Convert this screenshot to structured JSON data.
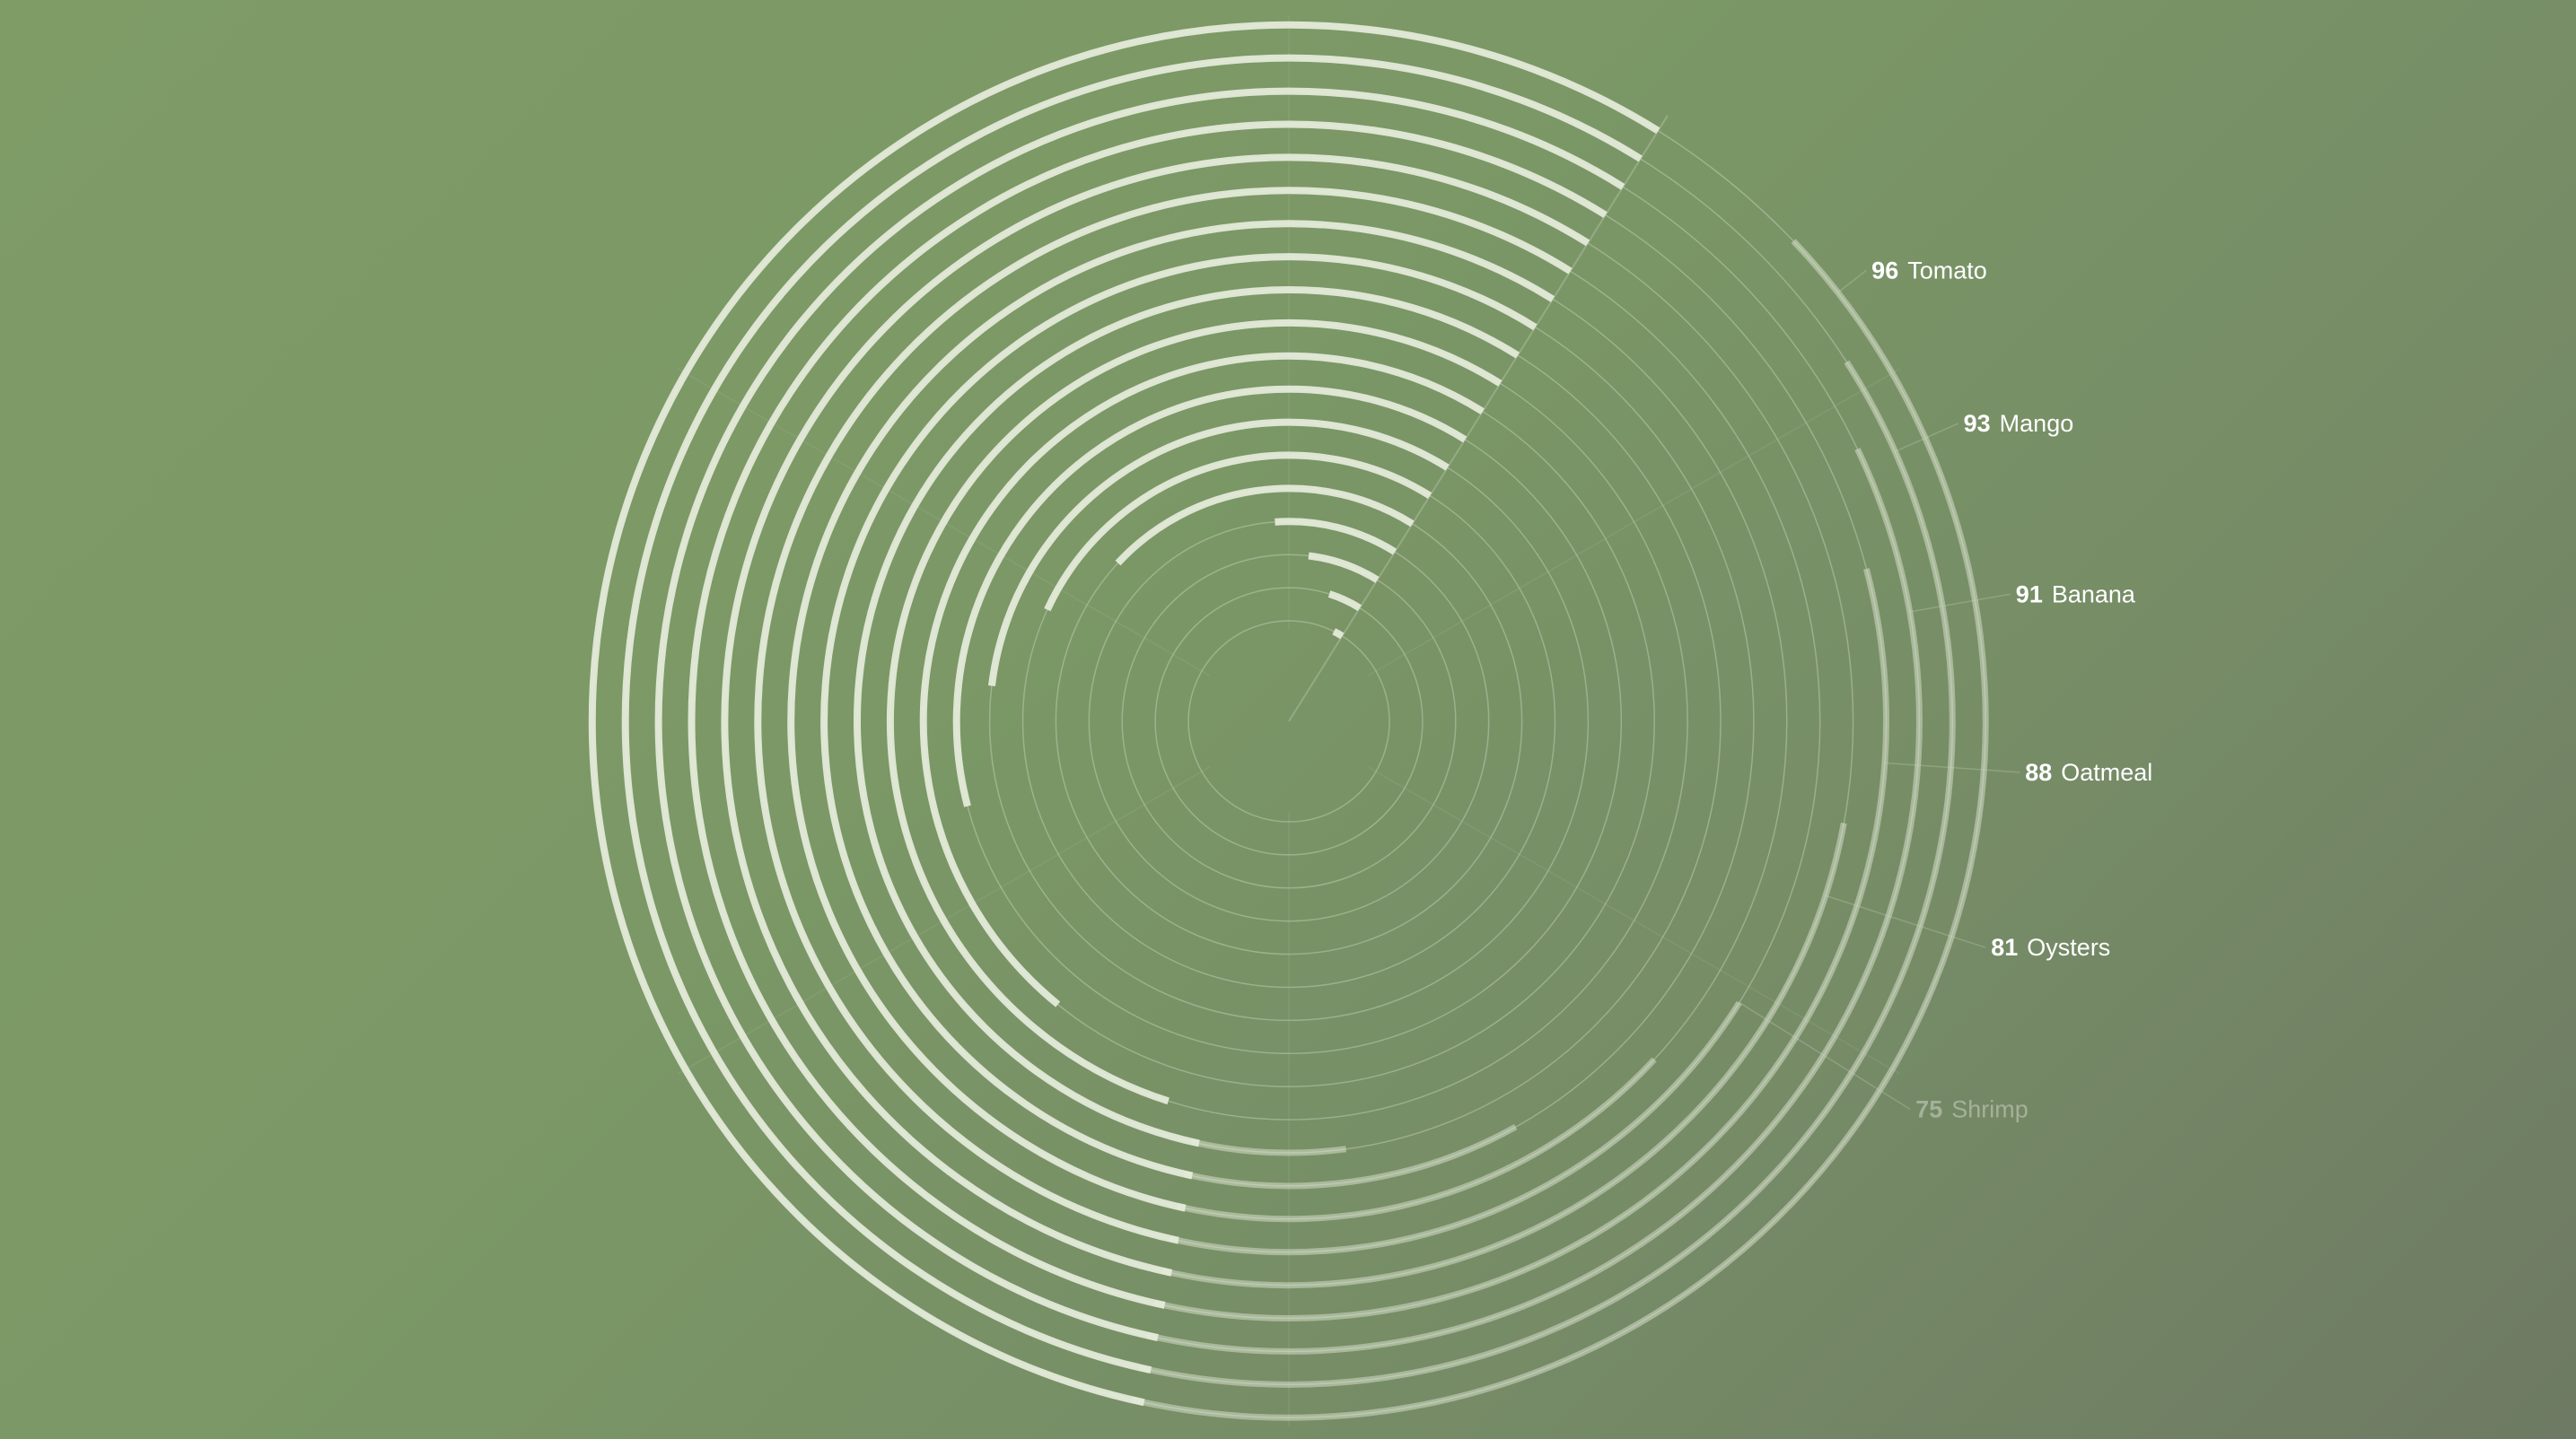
{
  "chart_data": {
    "type": "radial_bar",
    "title": "",
    "max_value": 100,
    "rings": [
      {
        "value": 1.5,
        "label": null
      },
      {
        "value": 4,
        "label": null
      },
      {
        "value": 7,
        "label": null
      },
      {
        "value": 10,
        "label": null
      },
      {
        "value": 22,
        "label": null
      },
      {
        "value": 27,
        "label": null
      },
      {
        "value": 32,
        "label": null
      },
      {
        "value": 38,
        "label": null
      },
      {
        "value": 48,
        "label": null
      },
      {
        "value": 54,
        "label": null
      },
      {
        "value": 61,
        "label": null
      },
      {
        "value": 67,
        "label": null
      },
      {
        "value": 72,
        "label": null
      },
      {
        "value": 75,
        "label": "Shrimp"
      },
      {
        "value": 81,
        "label": "Oysters"
      },
      {
        "value": 88,
        "label": "Oatmeal"
      },
      {
        "value": 91,
        "label": "Banana"
      },
      {
        "value": 93,
        "label": "Mango"
      },
      {
        "value": 96,
        "label": "Tomato"
      }
    ],
    "colors": {
      "bar": "#e6eddc",
      "track": "#c9d4bc",
      "text": "#ffffff"
    }
  }
}
